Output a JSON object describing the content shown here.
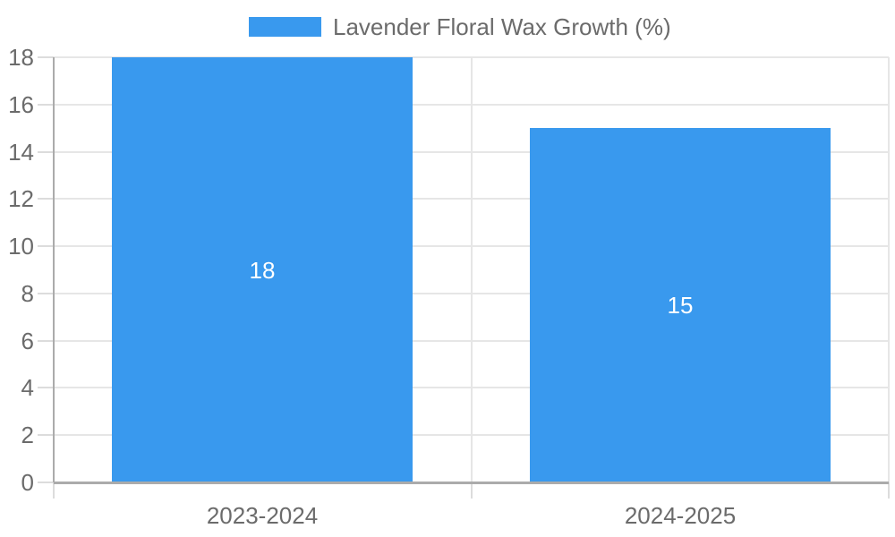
{
  "legend": {
    "label": "Lavender Floral Wax Growth (%)"
  },
  "colors": {
    "bar": "#3999EE",
    "grid": "#e6e6e6",
    "axis_line": "#ababab",
    "tick": "#dcdcdc",
    "label_text": "#6b6b6b",
    "bar_label_text": "#ffffff",
    "background": "#ffffff"
  },
  "chart_data": {
    "type": "bar",
    "title": "",
    "xlabel": "",
    "ylabel": "",
    "categories": [
      "2023-2024",
      "2024-2025"
    ],
    "series": [
      {
        "name": "Lavender Floral Wax Growth (%)",
        "values": [
          18,
          15
        ]
      }
    ],
    "bar_value_labels": [
      "18",
      "15"
    ],
    "y_tick_labels": [
      "0",
      "2",
      "4",
      "6",
      "8",
      "10",
      "12",
      "14",
      "16",
      "18"
    ],
    "ylim": [
      0,
      18
    ],
    "ytick_step": 2,
    "grid": true,
    "legend_position": "top"
  }
}
